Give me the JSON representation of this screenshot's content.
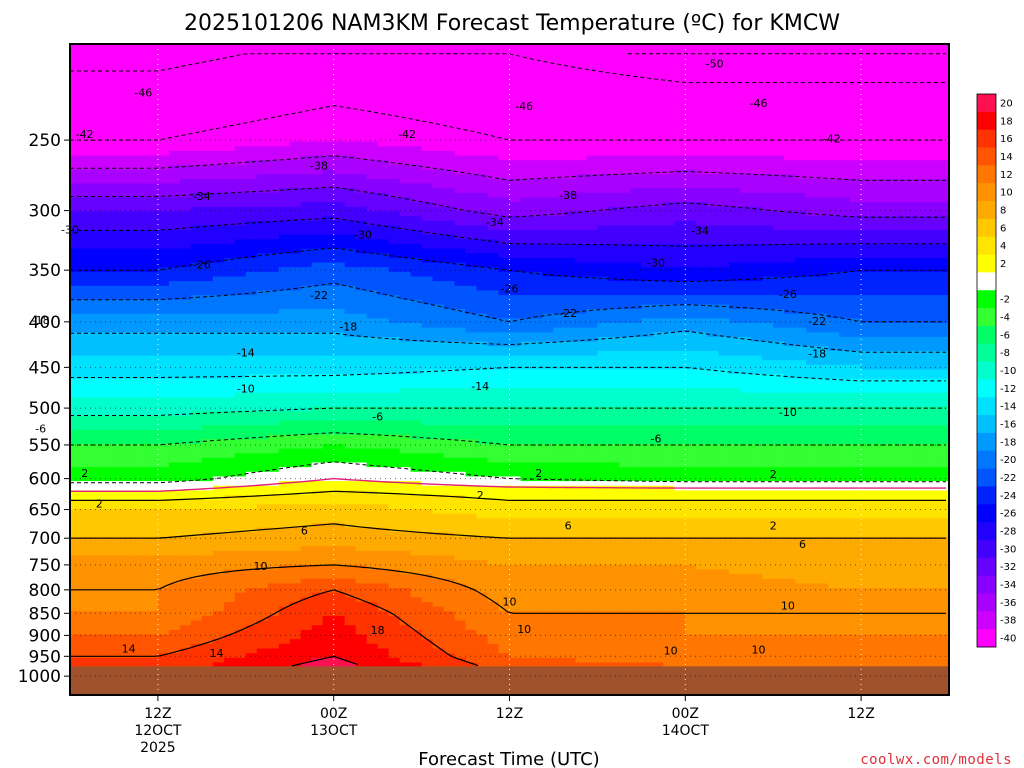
{
  "title": "2025101206 NAM3KM Forecast Temperature (ºC) for KMCW",
  "credit": "coolwx.com/models",
  "chart_data": {
    "type": "heatmap",
    "title": "2025101206 NAM3KM Forecast Temperature (ºC) for KMCW",
    "xlabel": "Forecast Time (UTC)",
    "ylabel": "",
    "y_axis": {
      "quantity": "pressure (hPa)",
      "scale": "log",
      "reversed": true,
      "range": [
        1050,
        195
      ],
      "ticks": [
        250,
        300,
        350,
        400,
        450,
        500,
        550,
        600,
        650,
        700,
        750,
        800,
        850,
        900,
        950,
        1000
      ]
    },
    "x_axis": {
      "range_hours_utc": [
        "2025-10-12T06Z",
        "2025-10-14T18Z"
      ],
      "ticks": [
        {
          "time": "2025-10-12T12Z",
          "lines": [
            "12Z",
            "12OCT",
            "2025"
          ]
        },
        {
          "time": "2025-10-13T00Z",
          "lines": [
            "00Z",
            "13OCT"
          ]
        },
        {
          "time": "2025-10-13T12Z",
          "lines": [
            "12Z"
          ]
        },
        {
          "time": "2025-10-14T00Z",
          "lines": [
            "00Z",
            "14OCT"
          ]
        },
        {
          "time": "2025-10-14T12Z",
          "lines": [
            "12Z"
          ]
        }
      ]
    },
    "grid": "dotted",
    "ground_color": "#a0522d",
    "colorbar": {
      "placement": "right",
      "levels": [
        {
          "label": "20",
          "color": "#ff1050"
        },
        {
          "label": "18",
          "color": "#ff0000"
        },
        {
          "label": "16",
          "color": "#ff3300"
        },
        {
          "label": "14",
          "color": "#ff5500"
        },
        {
          "label": "12",
          "color": "#ff7700"
        },
        {
          "label": "10",
          "color": "#ff9200"
        },
        {
          "label": "8",
          "color": "#ffaa00"
        },
        {
          "label": "6",
          "color": "#ffc800"
        },
        {
          "label": "4",
          "color": "#ffe400"
        },
        {
          "label": "2",
          "color": "#ffff00"
        },
        {
          "label": "",
          "color": "#ffffff"
        },
        {
          "label": "-2",
          "color": "#00ff00"
        },
        {
          "label": "-4",
          "color": "#33ff33"
        },
        {
          "label": "-6",
          "color": "#00ff66"
        },
        {
          "label": "-8",
          "color": "#00ff99"
        },
        {
          "label": "-10",
          "color": "#00ffcc"
        },
        {
          "label": "-12",
          "color": "#00ffff"
        },
        {
          "label": "-14",
          "color": "#00e0ff"
        },
        {
          "label": "-16",
          "color": "#00c0ff"
        },
        {
          "label": "-18",
          "color": "#0099ff"
        },
        {
          "label": "-20",
          "color": "#0077ff"
        },
        {
          "label": "-22",
          "color": "#0055ff"
        },
        {
          "label": "-24",
          "color": "#0022ff"
        },
        {
          "label": "-26",
          "color": "#0000ff"
        },
        {
          "label": "-28",
          "color": "#2200ff"
        },
        {
          "label": "-30",
          "color": "#4400ff"
        },
        {
          "label": "-32",
          "color": "#6600ff"
        },
        {
          "label": "-34",
          "color": "#8800ff"
        },
        {
          "label": "-36",
          "color": "#aa00ff"
        },
        {
          "label": "-38",
          "color": "#cc00ff"
        },
        {
          "label": "-40",
          "color": "#ff00ff"
        }
      ]
    },
    "profile_times": [
      "12Z 12OCT",
      "00Z 13OCT",
      "12Z 13OCT",
      "00Z 14OCT",
      "12Z 14OCT"
    ],
    "profiles": [
      {
        "p": [
          975,
          950,
          900,
          850,
          800,
          750,
          700,
          650,
          620,
          600,
          550,
          500,
          450,
          400,
          350,
          300,
          250,
          200
        ],
        "t": [
          15,
          14,
          12,
          10,
          10,
          9,
          6,
          4,
          0,
          -3,
          -6,
          -11,
          -15,
          -19,
          -26,
          -32,
          -42,
          -47
        ]
      },
      {
        "p": [
          975,
          950,
          900,
          850,
          800,
          750,
          700,
          650,
          620,
          600,
          550,
          500,
          450,
          400,
          350,
          300,
          250,
          200
        ],
        "t": [
          19,
          18,
          17,
          16,
          14,
          10,
          7,
          5,
          2,
          0,
          -4,
          -10,
          -15,
          -19,
          -23,
          -31,
          -40,
          -45
        ]
      },
      {
        "p": [
          975,
          950,
          900,
          850,
          800,
          750,
          700,
          650,
          620,
          600,
          550,
          500,
          450,
          400,
          350,
          300,
          250,
          200
        ],
        "t": [
          13,
          12,
          11,
          10,
          9,
          8,
          6,
          3,
          1,
          -2,
          -6,
          -10,
          -14,
          -22,
          -26,
          -35,
          -42,
          -46
        ]
      },
      {
        "p": [
          975,
          950,
          900,
          850,
          800,
          750,
          700,
          650,
          620,
          600,
          550,
          500,
          450,
          400,
          350,
          300,
          250,
          200
        ],
        "t": [
          12,
          11,
          10,
          10,
          9,
          8,
          6,
          3,
          1,
          -3,
          -6,
          -10,
          -14,
          -19,
          -28,
          -33,
          -42,
          -48
        ]
      },
      {
        "p": [
          975,
          950,
          900,
          850,
          800,
          750,
          700,
          650,
          620,
          600,
          550,
          500,
          450,
          400,
          350,
          300,
          250,
          200
        ],
        "t": [
          12,
          11,
          10,
          10,
          8,
          7,
          6,
          3,
          1,
          -3,
          -6,
          -10,
          -16,
          -22,
          -26,
          -35,
          -42,
          -48
        ]
      }
    ],
    "contour_labels": [
      {
        "value": -50,
        "time": "2025-10-14T02Z",
        "p": 205
      },
      {
        "value": -46,
        "time": "2025-10-12T11Z",
        "p": 221
      },
      {
        "value": -46,
        "time": "2025-10-13T13Z",
        "p": 229
      },
      {
        "value": -46,
        "time": "2025-10-14T05Z",
        "p": 227
      },
      {
        "value": -42,
        "time": "2025-10-12T07Z",
        "p": 246
      },
      {
        "value": -42,
        "time": "2025-10-13T05Z",
        "p": 246
      },
      {
        "value": -42,
        "time": "2025-10-14T10Z",
        "p": 249
      },
      {
        "value": -38,
        "time": "2025-10-12T23Z",
        "p": 267
      },
      {
        "value": -38,
        "time": "2025-10-13T16Z",
        "p": 288
      },
      {
        "value": -34,
        "time": "2025-10-12T15Z",
        "p": 289
      },
      {
        "value": -34,
        "time": "2025-10-13T11Z",
        "p": 309
      },
      {
        "value": -34,
        "time": "2025-10-14T01Z",
        "p": 316
      },
      {
        "value": -30,
        "time": "2025-10-12T06Z",
        "p": 315
      },
      {
        "value": -30,
        "time": "2025-10-13T02Z",
        "p": 319
      },
      {
        "value": -30,
        "time": "2025-10-13T22Z",
        "p": 343
      },
      {
        "value": -26,
        "time": "2025-10-12T15Z",
        "p": 345
      },
      {
        "value": -26,
        "time": "2025-10-13T12Z",
        "p": 367
      },
      {
        "value": -26,
        "time": "2025-10-14T07Z",
        "p": 372
      },
      {
        "value": -22,
        "time": "2025-10-12T23Z",
        "p": 373
      },
      {
        "value": -22,
        "time": "2025-10-13T16Z",
        "p": 391
      },
      {
        "value": -22,
        "time": "2025-10-14T09Z",
        "p": 399
      },
      {
        "value": -18,
        "time": "2025-10-12T04Z",
        "p": 398
      },
      {
        "value": -18,
        "time": "2025-10-13T01Z",
        "p": 405
      },
      {
        "value": -18,
        "time": "2025-10-14T09Z",
        "p": 434
      },
      {
        "value": -14,
        "time": "2025-10-12T18Z",
        "p": 433
      },
      {
        "value": -14,
        "time": "2025-10-13T10Z",
        "p": 472
      },
      {
        "value": -10,
        "time": "2025-10-12T18Z",
        "p": 475
      },
      {
        "value": -10,
        "time": "2025-10-14T07Z",
        "p": 505
      },
      {
        "value": -6,
        "time": "2025-10-12T04Z",
        "p": 527
      },
      {
        "value": -6,
        "time": "2025-10-13T03Z",
        "p": 511
      },
      {
        "value": -6,
        "time": "2025-10-13T22Z",
        "p": 541
      },
      {
        "value": 2,
        "time": "2025-10-12T07Z",
        "p": 591
      },
      {
        "value": 2,
        "time": "2025-10-12T08Z",
        "p": 640
      },
      {
        "value": 2,
        "time": "2025-10-13T14Z",
        "p": 591
      },
      {
        "value": 2,
        "time": "2025-10-13T10Z",
        "p": 626
      },
      {
        "value": 2,
        "time": "2025-10-14T06Z",
        "p": 593
      },
      {
        "value": 2,
        "time": "2025-10-14T06Z",
        "p": 677
      },
      {
        "value": 6,
        "time": "2025-10-12T22Z",
        "p": 686
      },
      {
        "value": 6,
        "time": "2025-10-13T16Z",
        "p": 677
      },
      {
        "value": 6,
        "time": "2025-10-14T08Z",
        "p": 711
      },
      {
        "value": 10,
        "time": "2025-10-12T19Z",
        "p": 752
      },
      {
        "value": 10,
        "time": "2025-10-13T12Z",
        "p": 825
      },
      {
        "value": 10,
        "time": "2025-10-13T13Z",
        "p": 885
      },
      {
        "value": 10,
        "time": "2025-10-14T07Z",
        "p": 833
      },
      {
        "value": 10,
        "time": "2025-10-13T23Z",
        "p": 936
      },
      {
        "value": 10,
        "time": "2025-10-14T05Z",
        "p": 934
      },
      {
        "value": 14,
        "time": "2025-10-12T10Z",
        "p": 931
      },
      {
        "value": 14,
        "time": "2025-10-12T16Z",
        "p": 942
      },
      {
        "value": 18,
        "time": "2025-10-13T03Z",
        "p": 888
      }
    ]
  }
}
